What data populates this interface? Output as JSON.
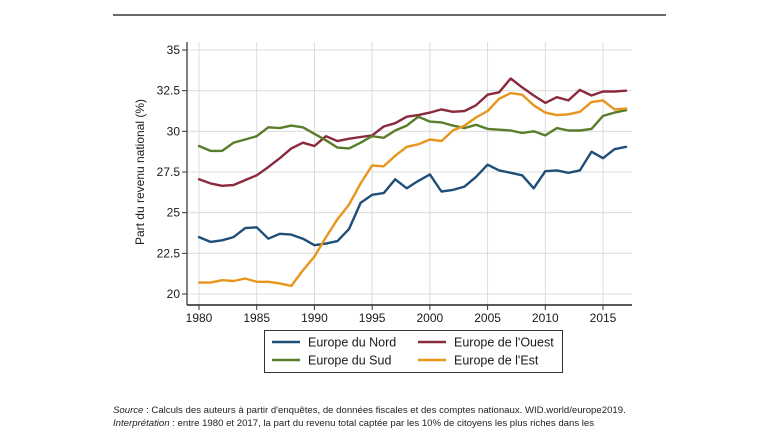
{
  "chart_data": {
    "type": "line",
    "title": "",
    "xlabel": "",
    "ylabel": "Part du revenu national (%)",
    "xlim": [
      1980,
      2017
    ],
    "ylim": [
      20,
      35
    ],
    "x_ticks": [
      1980,
      1985,
      1990,
      1995,
      2000,
      2005,
      2010,
      2015
    ],
    "y_ticks": [
      20,
      22.5,
      25,
      27.5,
      30,
      32.5,
      35
    ],
    "y_tick_labels": [
      "20",
      "22.5",
      "25",
      "27.5",
      "30",
      "32.5",
      "35"
    ],
    "grid": true,
    "legend_position": "bottom",
    "x": [
      1980,
      1981,
      1982,
      1983,
      1984,
      1985,
      1986,
      1987,
      1988,
      1989,
      1990,
      1991,
      1992,
      1993,
      1994,
      1995,
      1996,
      1997,
      1998,
      1999,
      2000,
      2001,
      2002,
      2003,
      2004,
      2005,
      2006,
      2007,
      2008,
      2009,
      2010,
      2011,
      2012,
      2013,
      2014,
      2015,
      2016,
      2017
    ],
    "series": [
      {
        "name": "Europe du Nord",
        "color": "#1f4e79",
        "values": [
          23.5,
          23.2,
          23.3,
          23.5,
          24.05,
          24.1,
          23.4,
          23.7,
          23.65,
          23.4,
          23.0,
          23.1,
          23.25,
          24.0,
          25.6,
          26.1,
          26.2,
          27.05,
          26.5,
          26.95,
          27.35,
          26.3,
          26.4,
          26.6,
          27.2,
          27.95,
          27.6,
          27.45,
          27.3,
          26.5,
          27.55,
          27.6,
          27.45,
          27.6,
          28.75,
          28.35,
          28.9,
          29.05
        ]
      },
      {
        "name": "Europe de l'Ouest",
        "color": "#8b2a3c",
        "values": [
          27.05,
          26.8,
          26.65,
          26.7,
          27.0,
          27.3,
          27.8,
          28.35,
          28.95,
          29.3,
          29.1,
          29.7,
          29.4,
          29.55,
          29.65,
          29.75,
          30.3,
          30.5,
          30.9,
          31.0,
          31.15,
          31.35,
          31.2,
          31.25,
          31.6,
          32.25,
          32.4,
          33.25,
          32.7,
          32.2,
          31.75,
          32.1,
          31.9,
          32.55,
          32.2,
          32.45,
          32.45,
          32.5
        ]
      },
      {
        "name": "Europe du Sud",
        "color": "#5a7d2b",
        "values": [
          29.1,
          28.8,
          28.8,
          29.3,
          29.5,
          29.7,
          30.25,
          30.2,
          30.35,
          30.25,
          29.85,
          29.45,
          29.0,
          28.95,
          29.3,
          29.7,
          29.6,
          30.05,
          30.35,
          30.9,
          30.6,
          30.55,
          30.35,
          30.2,
          30.4,
          30.15,
          30.1,
          30.05,
          29.9,
          30.0,
          29.75,
          30.2,
          30.05,
          30.05,
          30.15,
          30.95,
          31.15,
          31.3
        ]
      },
      {
        "name": "Europe de l'Est",
        "color": "#e8951c",
        "values": [
          20.7,
          20.7,
          20.85,
          20.8,
          20.95,
          20.75,
          20.75,
          20.65,
          20.5,
          21.45,
          22.3,
          23.5,
          24.6,
          25.5,
          26.8,
          27.9,
          27.85,
          28.5,
          29.05,
          29.2,
          29.5,
          29.4,
          30.05,
          30.35,
          30.85,
          31.25,
          32.0,
          32.35,
          32.25,
          31.6,
          31.15,
          31.0,
          31.05,
          31.2,
          31.8,
          31.9,
          31.35,
          31.4
        ]
      }
    ]
  },
  "footnote": {
    "source_label": "Source",
    "source_text": " : Calculs des auteurs à partir d'enquêtes, de données fiscales et des comptes nationaux. WID.world/europe2019.",
    "interpretation_label": "Interprétation",
    "interpretation_text": " : entre 1980 et 2017, la part du revenu total captée par les 10% de citoyens les plus riches dans les"
  }
}
